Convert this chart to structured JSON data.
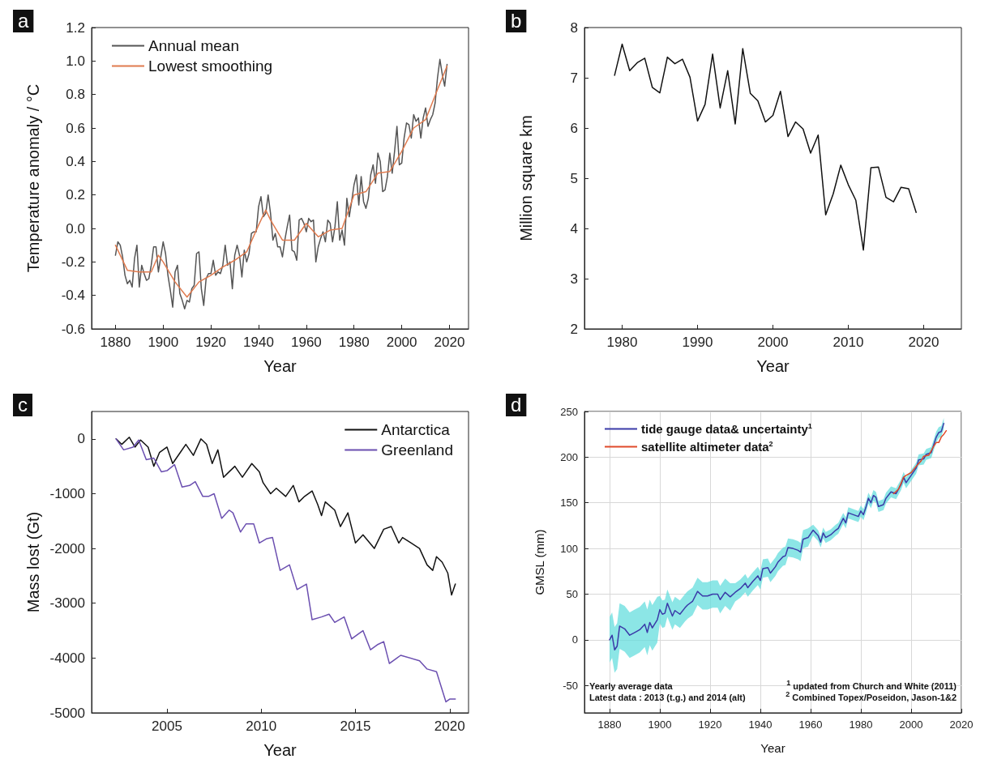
{
  "chart_data": [
    {
      "type": "line",
      "title": "a",
      "xlabel": "Year",
      "ylabel": "Temperature anomaly / °C",
      "xlim": [
        1870,
        2028
      ],
      "xticks": [
        1880,
        1900,
        1920,
        1940,
        1960,
        1980,
        2000,
        2020
      ],
      "ylim": [
        -0.6,
        1.2
      ],
      "yticks": [
        -0.6,
        -0.4,
        -0.2,
        {
          "value": 0,
          "label": "0.0"
        },
        0.2,
        0.4,
        0.6,
        0.8,
        {
          "value": 1,
          "label": "1.0"
        },
        1.2
      ],
      "grid": false,
      "legend": "top left",
      "marker": "none",
      "line_style": "solid",
      "series": [
        {
          "name": "Annual mean",
          "color": "#555555",
          "x": [
            1880,
            1881,
            1882,
            1883,
            1884,
            1885,
            1886,
            1887,
            1888,
            1889,
            1890,
            1891,
            1892,
            1893,
            1894,
            1895,
            1896,
            1897,
            1898,
            1899,
            1900,
            1901,
            1902,
            1903,
            1904,
            1905,
            1906,
            1907,
            1908,
            1909,
            1910,
            1911,
            1912,
            1913,
            1914,
            1915,
            1916,
            1917,
            1918,
            1919,
            1920,
            1921,
            1922,
            1923,
            1924,
            1925,
            1926,
            1927,
            1928,
            1929,
            1930,
            1931,
            1932,
            1933,
            1934,
            1935,
            1936,
            1937,
            1938,
            1939,
            1940,
            1941,
            1942,
            1943,
            1944,
            1945,
            1946,
            1947,
            1948,
            1949,
            1950,
            1951,
            1952,
            1953,
            1954,
            1955,
            1956,
            1957,
            1958,
            1959,
            1960,
            1961,
            1962,
            1963,
            1964,
            1965,
            1966,
            1967,
            1968,
            1969,
            1970,
            1971,
            1972,
            1973,
            1974,
            1975,
            1976,
            1977,
            1978,
            1979,
            1980,
            1981,
            1982,
            1983,
            1984,
            1985,
            1986,
            1987,
            1988,
            1989,
            1990,
            1991,
            1992,
            1993,
            1994,
            1995,
            1996,
            1997,
            1998,
            1999,
            2000,
            2001,
            2002,
            2003,
            2004,
            2005,
            2006,
            2007,
            2008,
            2009,
            2010,
            2011,
            2012,
            2013,
            2014,
            2015,
            2016,
            2017,
            2018,
            2019
          ],
          "values": [
            -0.16,
            -0.08,
            -0.1,
            -0.17,
            -0.28,
            -0.33,
            -0.31,
            -0.35,
            -0.18,
            -0.1,
            -0.35,
            -0.22,
            -0.27,
            -0.31,
            -0.3,
            -0.22,
            -0.11,
            -0.11,
            -0.26,
            -0.17,
            -0.08,
            -0.15,
            -0.28,
            -0.37,
            -0.47,
            -0.26,
            -0.22,
            -0.39,
            -0.43,
            -0.48,
            -0.43,
            -0.44,
            -0.36,
            -0.34,
            -0.15,
            -0.14,
            -0.36,
            -0.46,
            -0.3,
            -0.27,
            -0.27,
            -0.19,
            -0.28,
            -0.26,
            -0.27,
            -0.22,
            -0.1,
            -0.22,
            -0.2,
            -0.36,
            -0.16,
            -0.1,
            -0.16,
            -0.29,
            -0.13,
            -0.2,
            -0.15,
            -0.03,
            -0.02,
            -0.02,
            0.13,
            0.19,
            0.07,
            0.09,
            0.2,
            0.09,
            -0.07,
            -0.03,
            -0.11,
            -0.11,
            -0.17,
            -0.07,
            0.01,
            0.08,
            -0.13,
            -0.14,
            -0.19,
            0.05,
            0.06,
            0.03,
            -0.02,
            0.06,
            0.04,
            0.05,
            -0.2,
            -0.11,
            -0.06,
            -0.02,
            -0.08,
            0.05,
            0.03,
            -0.08,
            0.01,
            0.16,
            -0.07,
            -0.01,
            -0.1,
            0.18,
            0.07,
            0.16,
            0.26,
            0.32,
            0.14,
            0.31,
            0.16,
            0.12,
            0.18,
            0.32,
            0.38,
            0.27,
            0.45,
            0.4,
            0.22,
            0.23,
            0.31,
            0.45,
            0.33,
            0.46,
            0.61,
            0.38,
            0.39,
            0.54,
            0.63,
            0.62,
            0.54,
            0.68,
            0.64,
            0.66,
            0.54,
            0.66,
            0.72,
            0.61,
            0.65,
            0.68,
            0.75,
            0.9,
            1.01,
            0.92,
            0.85,
            0.98
          ]
        },
        {
          "name": "Lowest smoothing",
          "color": "#e07b4f",
          "x": [
            1880,
            1885,
            1890,
            1895,
            1898,
            1900,
            1905,
            1910,
            1915,
            1920,
            1925,
            1930,
            1935,
            1940,
            1943,
            1945,
            1950,
            1955,
            1960,
            1965,
            1970,
            1975,
            1980,
            1985,
            1990,
            1995,
            2000,
            2005,
            2010,
            2015,
            2019
          ],
          "values": [
            -0.1,
            -0.25,
            -0.26,
            -0.26,
            -0.16,
            -0.2,
            -0.32,
            -0.41,
            -0.32,
            -0.28,
            -0.23,
            -0.19,
            -0.14,
            0.02,
            0.11,
            0.05,
            -0.07,
            -0.07,
            0.03,
            -0.05,
            -0.01,
            0.0,
            0.2,
            0.22,
            0.33,
            0.34,
            0.46,
            0.6,
            0.65,
            0.83,
            0.97
          ]
        }
      ]
    },
    {
      "type": "line",
      "title": "b",
      "xlabel": "Year",
      "ylabel": "Million square km",
      "xlim": [
        1975,
        2025
      ],
      "xticks": [
        1980,
        1990,
        2000,
        2010,
        2020
      ],
      "ylim": [
        2,
        8
      ],
      "yticks": [
        2,
        3,
        4,
        5,
        6,
        7,
        8
      ],
      "grid": false,
      "marker": "none",
      "line_style": "solid",
      "series": [
        {
          "color": "#111111",
          "x": [
            1979,
            1980,
            1981,
            1982,
            1983,
            1984,
            1985,
            1986,
            1987,
            1988,
            1989,
            1990,
            1991,
            1992,
            1993,
            1994,
            1995,
            1996,
            1997,
            1998,
            1999,
            2000,
            2001,
            2002,
            2003,
            2004,
            2005,
            2006,
            2007,
            2008,
            2009,
            2010,
            2011,
            2012,
            2013,
            2014,
            2015,
            2016,
            2017,
            2018,
            2019
          ],
          "values": [
            7.05,
            7.67,
            7.14,
            7.3,
            7.39,
            6.81,
            6.7,
            7.41,
            7.28,
            7.37,
            7.01,
            6.14,
            6.47,
            7.47,
            6.4,
            7.14,
            6.08,
            7.58,
            6.69,
            6.54,
            6.12,
            6.25,
            6.73,
            5.83,
            6.12,
            5.98,
            5.5,
            5.86,
            4.27,
            4.69,
            5.26,
            4.87,
            4.56,
            3.57,
            5.21,
            5.22,
            4.62,
            4.53,
            4.82,
            4.79,
            4.32
          ]
        }
      ]
    },
    {
      "type": "line",
      "title": "c",
      "xlabel": "Year",
      "ylabel": "Mass lost (Gt)",
      "xlim": [
        2001,
        2021
      ],
      "xticks": [
        2005,
        2010,
        2015,
        2020
      ],
      "ylim": [
        -5000,
        500
      ],
      "yticks": [
        -5000,
        -4000,
        -3000,
        -2000,
        -1000,
        0
      ],
      "grid": false,
      "legend": "top right",
      "marker": "none",
      "line_style": "solid",
      "series": [
        {
          "name": "Antarctica",
          "color": "#111111",
          "x": [
            2002.3,
            2002.6,
            2003.0,
            2003.3,
            2003.6,
            2004.0,
            2004.3,
            2004.6,
            2005.0,
            2005.3,
            2005.7,
            2006.0,
            2006.4,
            2006.8,
            2007.1,
            2007.4,
            2007.7,
            2008.0,
            2008.3,
            2008.6,
            2009.0,
            2009.5,
            2009.9,
            2010.1,
            2010.5,
            2010.8,
            2011.3,
            2011.7,
            2012.0,
            2012.3,
            2012.7,
            2013.0,
            2013.2,
            2013.4,
            2013.9,
            2014.2,
            2014.6,
            2015.0,
            2015.4,
            2016.0,
            2016.5,
            2016.9,
            2017.3,
            2017.5,
            2018.4,
            2018.8,
            2019.1,
            2019.3,
            2019.6,
            2019.9,
            2020.1,
            2020.3
          ],
          "values": [
            0,
            -100,
            30,
            -150,
            -20,
            -150,
            -500,
            -250,
            -150,
            -450,
            -250,
            -100,
            -300,
            0,
            -100,
            -450,
            -200,
            -700,
            -600,
            -500,
            -700,
            -450,
            -600,
            -800,
            -1000,
            -900,
            -1050,
            -850,
            -1150,
            -1050,
            -950,
            -1200,
            -1400,
            -1150,
            -1300,
            -1600,
            -1350,
            -1900,
            -1750,
            -2000,
            -1650,
            -1600,
            -1900,
            -1800,
            -2000,
            -2300,
            -2400,
            -2150,
            -2250,
            -2450,
            -2850,
            -2650
          ]
        },
        {
          "name": "Greenland",
          "color": "#6b4fb0",
          "x": [
            2002.3,
            2002.7,
            2003.2,
            2003.5,
            2003.9,
            2004.3,
            2004.7,
            2005.0,
            2005.4,
            2005.8,
            2006.2,
            2006.5,
            2006.9,
            2007.2,
            2007.5,
            2007.9,
            2008.3,
            2008.5,
            2008.9,
            2009.2,
            2009.6,
            2009.9,
            2010.3,
            2010.6,
            2011.0,
            2011.5,
            2011.9,
            2012.4,
            2012.7,
            2013.2,
            2013.6,
            2013.9,
            2014.4,
            2014.8,
            2015.2,
            2015.4,
            2015.8,
            2016.2,
            2016.5,
            2016.8,
            2017.2,
            2017.4,
            2018.4,
            2018.8,
            2019.3,
            2019.8,
            2020.0,
            2020.3
          ],
          "values": [
            0,
            -200,
            -150,
            -20,
            -380,
            -350,
            -600,
            -580,
            -470,
            -880,
            -850,
            -780,
            -1050,
            -1050,
            -1000,
            -1450,
            -1300,
            -1350,
            -1700,
            -1550,
            -1550,
            -1900,
            -1820,
            -1800,
            -2400,
            -2300,
            -2750,
            -2650,
            -3300,
            -3250,
            -3200,
            -3350,
            -3250,
            -3650,
            -3550,
            -3500,
            -3850,
            -3750,
            -3700,
            -4100,
            -4000,
            -3950,
            -4050,
            -4200,
            -4250,
            -4800,
            -4750,
            -4750
          ]
        }
      ]
    },
    {
      "type": "line",
      "title": "d",
      "xlabel": "Year",
      "ylabel": "GMSL (mm)",
      "xlim": [
        1870,
        2020
      ],
      "xticks": [
        1880,
        1900,
        1920,
        1940,
        1960,
        1980,
        2000,
        2020
      ],
      "ylim": [
        -80,
        250
      ],
      "yticks": [
        -50,
        0,
        50,
        100,
        150,
        200,
        250
      ],
      "grid": true,
      "legend": "top left",
      "marker": "none",
      "line_style": "solid",
      "annotations": [
        "Yearly average data",
        "Latest data : 2013 (t.g.) and 2014 (alt)",
        "$^{1}$ updated from Church and White (2011)",
        "$^{2}$ Combined Topex/Poseidon, Jason-1&2"
      ],
      "series": [
        {
          "name": "tide gauge data& uncertainty$^{1}$",
          "color": "#3a3aa8",
          "x": [
            1880,
            1881,
            1882,
            1883,
            1884,
            1886,
            1888,
            1890,
            1892,
            1894,
            1895,
            1896,
            1897,
            1899,
            1900,
            1901,
            1902,
            1903,
            1905,
            1906,
            1908,
            1910,
            1911,
            1913,
            1915,
            1917,
            1919,
            1921,
            1923,
            1924,
            1926,
            1928,
            1930,
            1932,
            1934,
            1935,
            1937,
            1939,
            1940,
            1941,
            1943,
            1944,
            1946,
            1947,
            1949,
            1950,
            1951,
            1953,
            1955,
            1956,
            1957,
            1959,
            1961,
            1963,
            1964,
            1965,
            1966,
            1968,
            1970,
            1971,
            1973,
            1974,
            1975,
            1977,
            1979,
            1980,
            1981,
            1982,
            1983,
            1984,
            1985,
            1986,
            1987,
            1989,
            1990,
            1992,
            1994,
            1996,
            1997,
            1998,
            2000,
            2002,
            2003,
            2005,
            2006,
            2008,
            2010,
            2011,
            2012,
            2013
          ],
          "values": [
            0,
            5,
            -11,
            -7,
            15,
            12,
            5,
            8,
            11,
            17,
            8,
            19,
            13,
            22,
            33,
            28,
            29,
            40,
            26,
            32,
            28,
            35,
            38,
            42,
            53,
            48,
            48,
            50,
            50,
            44,
            52,
            47,
            52,
            56,
            62,
            57,
            64,
            70,
            65,
            78,
            79,
            73,
            80,
            85,
            91,
            92,
            101,
            100,
            98,
            96,
            110,
            112,
            120,
            114,
            107,
            117,
            112,
            115,
            120,
            122,
            133,
            128,
            139,
            137,
            135,
            141,
            137,
            145,
            155,
            150,
            158,
            156,
            146,
            148,
            155,
            162,
            160,
            170,
            178,
            172,
            180,
            188,
            197,
            198,
            203,
            205,
            222,
            227,
            228,
            237
          ],
          "lower": [
            -25,
            -20,
            -36,
            -32,
            -10,
            -13,
            -20,
            -17,
            -14,
            -8,
            -17,
            -6,
            -12,
            -3,
            18,
            13,
            14,
            25,
            11,
            17,
            13,
            20,
            23,
            27,
            38,
            33,
            33,
            35,
            35,
            29,
            37,
            32,
            42,
            46,
            52,
            47,
            54,
            60,
            55,
            68,
            69,
            63,
            70,
            75,
            81,
            82,
            91,
            90,
            88,
            86,
            100,
            102,
            114,
            108,
            101,
            111,
            106,
            109,
            114,
            116,
            127,
            122,
            133,
            131,
            129,
            135,
            131,
            139,
            149,
            144,
            152,
            150,
            140,
            142,
            149,
            156,
            154,
            164,
            172,
            166,
            174,
            182,
            191,
            192,
            197,
            199,
            216,
            221,
            222,
            231
          ],
          "upper": [
            25,
            30,
            14,
            18,
            40,
            37,
            30,
            33,
            36,
            42,
            33,
            44,
            38,
            47,
            48,
            43,
            44,
            55,
            41,
            47,
            43,
            50,
            53,
            57,
            68,
            63,
            63,
            65,
            65,
            59,
            67,
            62,
            62,
            66,
            72,
            67,
            74,
            80,
            75,
            88,
            89,
            83,
            90,
            95,
            101,
            102,
            111,
            110,
            108,
            106,
            120,
            122,
            126,
            120,
            113,
            123,
            118,
            121,
            126,
            128,
            139,
            134,
            145,
            143,
            141,
            147,
            143,
            151,
            161,
            156,
            164,
            162,
            152,
            154,
            161,
            168,
            166,
            176,
            184,
            178,
            186,
            194,
            203,
            204,
            209,
            211,
            228,
            233,
            234,
            243
          ]
        },
        {
          "name": "satellite altimeter data$^{2}$",
          "color": "#e04a2a",
          "x": [
            1993,
            1995,
            1997,
            1998,
            2000,
            2002,
            2004,
            2005,
            2007,
            2009,
            2010,
            2011,
            2012,
            2013,
            2014
          ],
          "values": [
            160,
            165,
            178,
            180,
            183,
            190,
            196,
            201,
            202,
            212,
            216,
            216,
            222,
            225,
            229
          ]
        }
      ]
    }
  ]
}
